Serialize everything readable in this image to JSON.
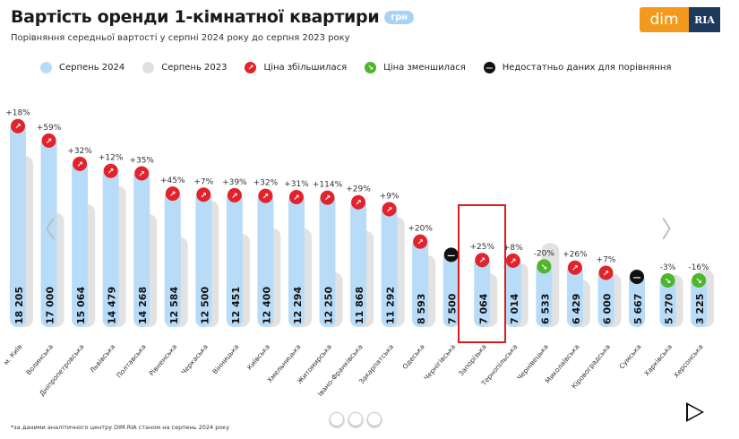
{
  "header": {
    "title": "Вартість оренди 1-кімнатної квартири",
    "unit": "грн",
    "subtitle": "Порівняння середньої вартості у серпні 2024 року до серпня 2023 року",
    "logo": "dim RIA"
  },
  "legend": [
    {
      "label": "Серпень 2024",
      "color": "#b8dcf8"
    },
    {
      "label": "Серпень 2023",
      "color": "#e0e0e0"
    },
    {
      "label": "Ціна збільшилася",
      "color": "#e2232b",
      "icon": "arrow-up-right-icon"
    },
    {
      "label": "Ціна зменшилася",
      "color": "#4db62a",
      "icon": "arrow-down-right-icon"
    },
    {
      "label": "Недостатньо даних для порівняння",
      "color": "#111111",
      "icon": "minus-icon"
    }
  ],
  "footnote": "*за даними аналітичного центру DIM.RIA станом на серпень 2024 року",
  "highlighted": "Запорізька",
  "chart_data": {
    "type": "bar",
    "title": "Вартість оренди 1-кімнатної квартири",
    "ylabel": "грн",
    "categories": [
      "м. Київ",
      "Волинська",
      "Дніпропетровська",
      "Львівська",
      "Полтавська",
      "Рівненська",
      "Черкаська",
      "Вінницька",
      "Київська",
      "Хмельницька",
      "Житомирська",
      "Івано-Франківська",
      "Закарпатська",
      "Одеська",
      "Чернігівська",
      "Запорізька",
      "Тернопільська",
      "Чернівецька",
      "Миколаївська",
      "Кіровоградська",
      "Сумська",
      "Харківська",
      "Херсонська"
    ],
    "values_labels": [
      "18 205",
      "17 000",
      "15 064",
      "14 479",
      "14 268",
      "12 584",
      "12 500",
      "12 451",
      "12 400",
      "12 294",
      "12 250",
      "11 868",
      "11 292",
      "8 593",
      "7 500",
      "7 064",
      "7 014",
      "6 533",
      "6 429",
      "6 000",
      "5 667",
      "5 270",
      "3 225"
    ],
    "series": [
      {
        "name": "Серпень 2024",
        "values": [
          18205,
          17000,
          15064,
          14479,
          14268,
          12584,
          12500,
          12451,
          12400,
          12294,
          12250,
          11868,
          11292,
          8593,
          7500,
          7064,
          7014,
          6533,
          6429,
          6000,
          5667,
          5270,
          3225
        ]
      }
    ],
    "change_labels": [
      "+18%",
      "+59%",
      "+32%",
      "+12%",
      "+35%",
      "+45%",
      "+7%",
      "+39%",
      "+32%",
      "+31%",
      "+114%",
      "+29%",
      "+9%",
      "+20%",
      "",
      "+25%",
      "+8%",
      "-20%",
      "+26%",
      "+7%",
      "",
      "-3%",
      "-16%"
    ],
    "change_pct": [
      18,
      59,
      32,
      12,
      35,
      45,
      7,
      39,
      32,
      31,
      114,
      29,
      9,
      20,
      null,
      25,
      8,
      -20,
      26,
      7,
      null,
      -3,
      -16
    ]
  }
}
